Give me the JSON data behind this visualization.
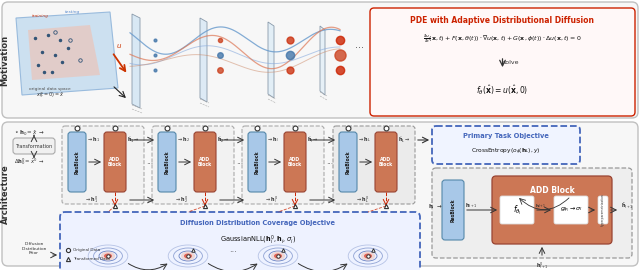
{
  "fig_width": 6.4,
  "fig_height": 2.7,
  "dpi": 100,
  "bg_color": "#ffffff",
  "res_block_color": "#a8c8e8",
  "add_block_color": "#cc7755",
  "transform_box_color": "#f0f0f0",
  "dashed_box_color": "#4466bb",
  "pde_title": "PDE with Adaptive Distributional Diffusion",
  "primary_task_title": "Primary Task Objective",
  "diffusion_title": "Diffusion Distribution Coverage Objective"
}
